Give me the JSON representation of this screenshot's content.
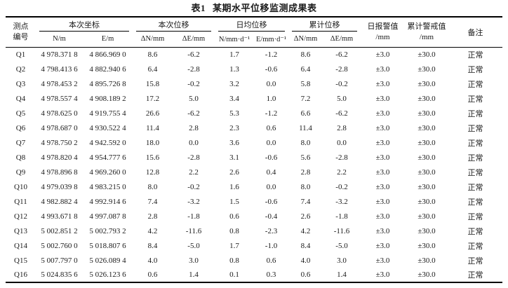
{
  "title": {
    "tag": "表1",
    "text": "某期水平位移监测成果表"
  },
  "table": {
    "header": {
      "point": {
        "line1": "测点",
        "line2": "编号"
      },
      "groups": [
        {
          "label": "本次坐标",
          "cols": [
            "N/m",
            "E/m"
          ]
        },
        {
          "label": "本次位移",
          "cols": [
            "ΔN/mm",
            "ΔE/mm"
          ]
        },
        {
          "label": "日均位移",
          "cols": [
            "N/mm·d⁻¹",
            "E/mm·d⁻¹"
          ]
        },
        {
          "label": "累计位移",
          "cols": [
            "ΔN/mm",
            "ΔE/mm"
          ]
        }
      ],
      "daily_alarm": {
        "line1": "日报警值",
        "line2": "/mm"
      },
      "cumulative_alarm": {
        "line1": "累计警戒值",
        "line2": "/mm"
      },
      "remark": "备注"
    },
    "rows": [
      [
        "Q1",
        "4 978.371 8",
        "4 866.969 0",
        "8.6",
        "-6.2",
        "1.7",
        "-1.2",
        "8.6",
        "-6.2",
        "±3.0",
        "±30.0",
        "正常"
      ],
      [
        "Q2",
        "4 798.413 6",
        "4 882.940 6",
        "6.4",
        "-2.8",
        "1.3",
        "-0.6",
        "6.4",
        "-2.8",
        "±3.0",
        "±30.0",
        "正常"
      ],
      [
        "Q3",
        "4 978.453 2",
        "4 895.726 8",
        "15.8",
        "-0.2",
        "3.2",
        "0.0",
        "5.8",
        "-0.2",
        "±3.0",
        "±30.0",
        "正常"
      ],
      [
        "Q4",
        "4 978.557 4",
        "4 908.189 2",
        "17.2",
        "5.0",
        "3.4",
        "1.0",
        "7.2",
        "5.0",
        "±3.0",
        "±30.0",
        "正常"
      ],
      [
        "Q5",
        "4 978.625 0",
        "4 919.755 4",
        "26.6",
        "-6.2",
        "5.3",
        "-1.2",
        "6.6",
        "-6.2",
        "±3.0",
        "±30.0",
        "正常"
      ],
      [
        "Q6",
        "4 978.687 0",
        "4 930.522 4",
        "11.4",
        "2.8",
        "2.3",
        "0.6",
        "11.4",
        "2.8",
        "±3.0",
        "±30.0",
        "正常"
      ],
      [
        "Q7",
        "4 978.750 2",
        "4 942.592 0",
        "18.0",
        "0.0",
        "3.6",
        "0.0",
        "8.0",
        "0.0",
        "±3.0",
        "±30.0",
        "正常"
      ],
      [
        "Q8",
        "4 978.820 4",
        "4 954.777 6",
        "15.6",
        "-2.8",
        "3.1",
        "-0.6",
        "5.6",
        "-2.8",
        "±3.0",
        "±30.0",
        "正常"
      ],
      [
        "Q9",
        "4 978.896 8",
        "4 969.260 0",
        "12.8",
        "2.2",
        "2.6",
        "0.4",
        "2.8",
        "2.2",
        "±3.0",
        "±30.0",
        "正常"
      ],
      [
        "Q10",
        "4 979.039 8",
        "4 983.215 0",
        "8.0",
        "-0.2",
        "1.6",
        "0.0",
        "8.0",
        "-0.2",
        "±3.0",
        "±30.0",
        "正常"
      ],
      [
        "Q11",
        "4 982.882 4",
        "4 992.914 6",
        "7.4",
        "-3.2",
        "1.5",
        "-0.6",
        "7.4",
        "-3.2",
        "±3.0",
        "±30.0",
        "正常"
      ],
      [
        "Q12",
        "4 993.671 8",
        "4 997.087 8",
        "2.8",
        "-1.8",
        "0.6",
        "-0.4",
        "2.6",
        "-1.8",
        "±3.0",
        "±30.0",
        "正常"
      ],
      [
        "Q13",
        "5 002.851 2",
        "5 002.793 2",
        "4.2",
        "-11.6",
        "0.8",
        "-2.3",
        "4.2",
        "-11.6",
        "±3.0",
        "±30.0",
        "正常"
      ],
      [
        "Q14",
        "5 002.760 0",
        "5 018.807 6",
        "8.4",
        "-5.0",
        "1.7",
        "-1.0",
        "8.4",
        "-5.0",
        "±3.0",
        "±30.0",
        "正常"
      ],
      [
        "Q15",
        "5 007.797 0",
        "5 026.089 4",
        "4.0",
        "3.0",
        "0.8",
        "0.6",
        "4.0",
        "3.0",
        "±3.0",
        "±30.0",
        "正常"
      ],
      [
        "Q16",
        "5 024.835 6",
        "5 026.123 6",
        "0.6",
        "1.4",
        "0.1",
        "0.3",
        "0.6",
        "1.4",
        "±3.0",
        "±30.0",
        "正常"
      ]
    ]
  }
}
